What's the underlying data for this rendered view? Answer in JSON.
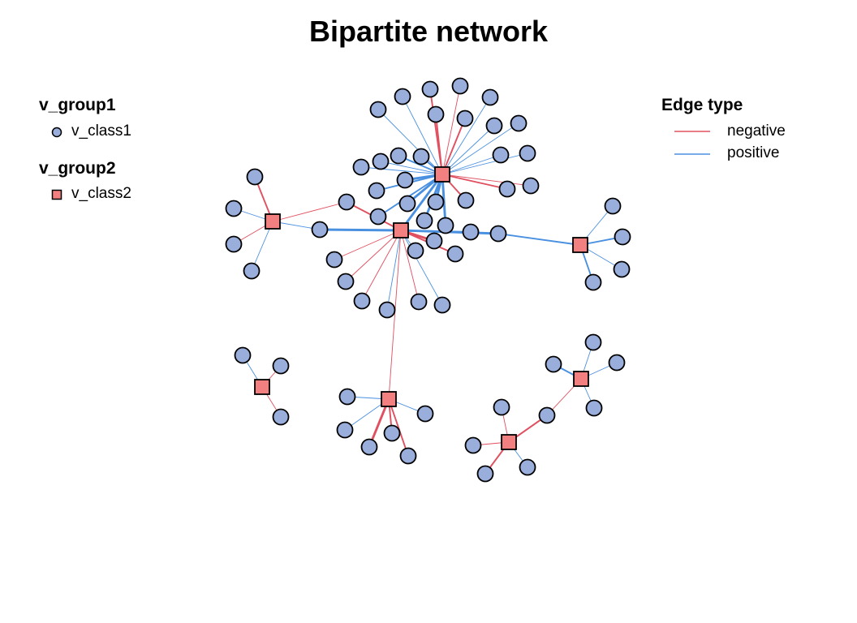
{
  "title": "Bipartite network",
  "legend": {
    "group1_title": "v_group1",
    "group1_class": "v_class1",
    "group2_title": "v_group2",
    "group2_class": "v_class2",
    "edge_title": "Edge type",
    "edge_negative": "negative",
    "edge_positive": "positive"
  },
  "colors": {
    "class1_fill": "#9aaedc",
    "class2_fill": "#f28080",
    "negative": "#e05060",
    "positive": "#4a90e0",
    "outline": "#000000"
  }
}
